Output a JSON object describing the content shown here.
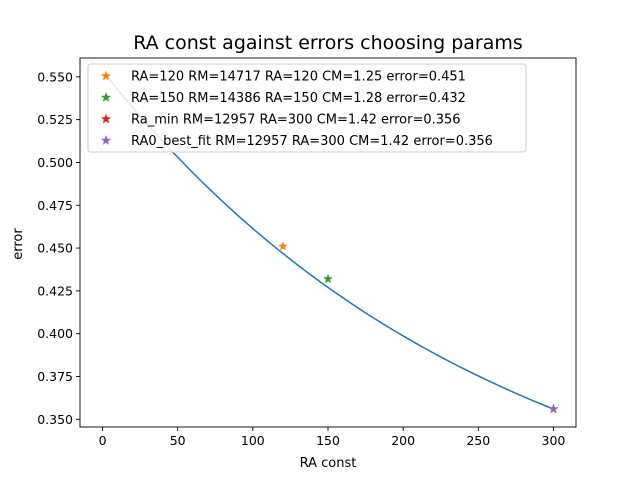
{
  "chart_data": {
    "type": "line",
    "title": "RA const against errors choosing params",
    "xlabel": "RA const",
    "ylabel": "error",
    "xlim": [
      -15,
      315
    ],
    "ylim": [
      0.3455,
      0.561
    ],
    "xticks": [
      0,
      50,
      100,
      150,
      200,
      250,
      300
    ],
    "yticks": [
      0.35,
      0.375,
      0.4,
      0.425,
      0.45,
      0.475,
      0.5,
      0.525,
      0.55
    ],
    "legend_position": "top-left",
    "grid": false,
    "curve": {
      "color": "#1f77b4",
      "x": [
        5,
        10,
        20,
        30,
        40,
        50,
        60,
        70,
        80,
        90,
        100,
        110,
        120,
        130,
        140,
        150,
        160,
        170,
        180,
        190,
        200,
        210,
        220,
        230,
        240,
        250,
        260,
        270,
        280,
        290,
        300
      ],
      "y": [
        0.548,
        0.542,
        0.53,
        0.519,
        0.508,
        0.497,
        0.487,
        0.477,
        0.468,
        0.459,
        0.451,
        0.444,
        0.451,
        0.432,
        0.432,
        0.432,
        0.425,
        0.418,
        0.411,
        0.405,
        0.399,
        0.393,
        0.387,
        0.382,
        0.376,
        0.371,
        0.366,
        0.361,
        0.356,
        0.356,
        0.356
      ]
    },
    "series": [
      {
        "name": "RA=120 RM=14717 RA=120 CM=1.25 error=0.451",
        "color": "#ff7f0e",
        "x": 120,
        "y": 0.451,
        "marker": "star"
      },
      {
        "name": "RA=150 RM=14386 RA=150 CM=1.28 error=0.432",
        "color": "#2ca02c",
        "x": 150,
        "y": 0.432,
        "marker": "star"
      },
      {
        "name": "Ra_min RM=12957 RA=300 CM=1.42 error=0.356",
        "color": "#d62728",
        "x": 300,
        "y": 0.356,
        "marker": "star"
      },
      {
        "name": "RA0_best_fit RM=12957 RA=300 CM=1.42 error=0.356",
        "color": "#9467bd",
        "x": 300,
        "y": 0.356,
        "marker": "star"
      }
    ]
  }
}
